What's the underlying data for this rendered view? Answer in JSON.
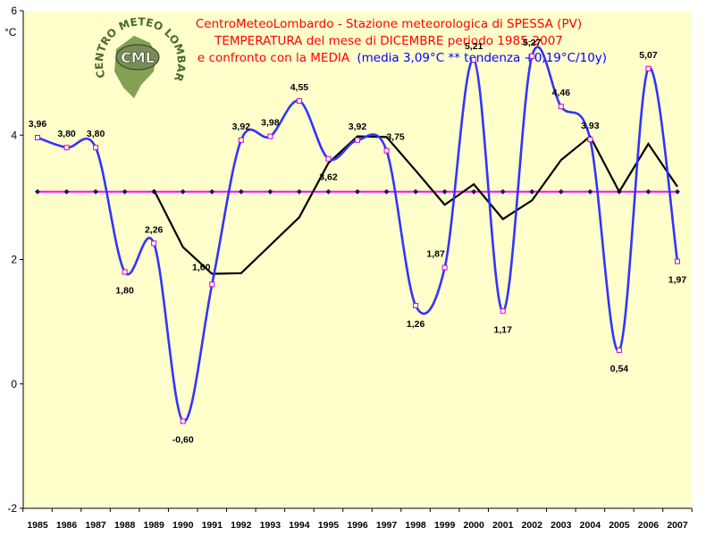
{
  "chart_data": {
    "type": "line",
    "title_lines": [
      "CentroMeteoLombardo - Stazione meteorologica di SPESSA (PV)",
      "TEMPERATURA del mese di DICEMBRE periodo 1985-2007"
    ],
    "title_line3_red": "e confronto con la MEDIA",
    "title_line3_blue": "(media 3,09°C ** tendenza +0,19°C/10y)",
    "ylabel": "°C",
    "ylim": [
      -2,
      6
    ],
    "yticks": [
      "-2",
      "0",
      "2",
      "4",
      "6"
    ],
    "categories": [
      "1985",
      "1986",
      "1987",
      "1988",
      "1989",
      "1990",
      "1991",
      "1992",
      "1993",
      "1994",
      "1995",
      "1996",
      "1997",
      "1998",
      "1999",
      "2000",
      "2001",
      "2002",
      "2003",
      "2004",
      "2005",
      "2006",
      "2007"
    ],
    "series": [
      {
        "name": "",
        "color": "#3333ff",
        "values": [
          3.96,
          3.8,
          3.8,
          1.8,
          2.26,
          -0.6,
          1.6,
          3.92,
          3.98,
          4.55,
          3.62,
          3.92,
          3.75,
          1.26,
          1.87,
          5.21,
          1.17,
          5.27,
          4.46,
          3.93,
          0.54,
          5.07,
          1.97
        ],
        "labels": [
          "3,96",
          "3,80",
          "3,80",
          "1,80",
          "2,26",
          "-0,60",
          "1,60",
          "3,92",
          "3,98",
          "4,55",
          "3,62",
          "3,92",
          "3,75",
          "1,26",
          "1,87",
          "5,21",
          "1,17",
          "5,27",
          "4,46",
          "3,93",
          "0,54",
          "5,07",
          "1,97"
        ]
      },
      {
        "name": "",
        "color": "#ff00ff",
        "values": [
          3.09,
          3.09,
          3.09,
          3.09,
          3.09,
          3.09,
          3.09,
          3.09,
          3.09,
          3.09,
          3.09,
          3.09,
          3.09,
          3.09,
          3.09,
          3.09,
          3.09,
          3.09,
          3.09,
          3.09,
          3.09,
          3.09,
          3.09
        ]
      },
      {
        "name": "",
        "color": "#000000",
        "values": [
          null,
          null,
          null,
          null,
          3.12,
          2.2,
          1.77,
          1.78,
          2.23,
          2.68,
          3.55,
          3.98,
          3.97,
          3.43,
          2.88,
          3.21,
          2.65,
          2.95,
          3.6,
          3.98,
          3.09,
          3.86,
          3.17
        ]
      }
    ],
    "legend": "none",
    "grid": false
  },
  "logo": {
    "arc_text": "CENTRO METEO LOMBARDO",
    "initials": "CML"
  }
}
